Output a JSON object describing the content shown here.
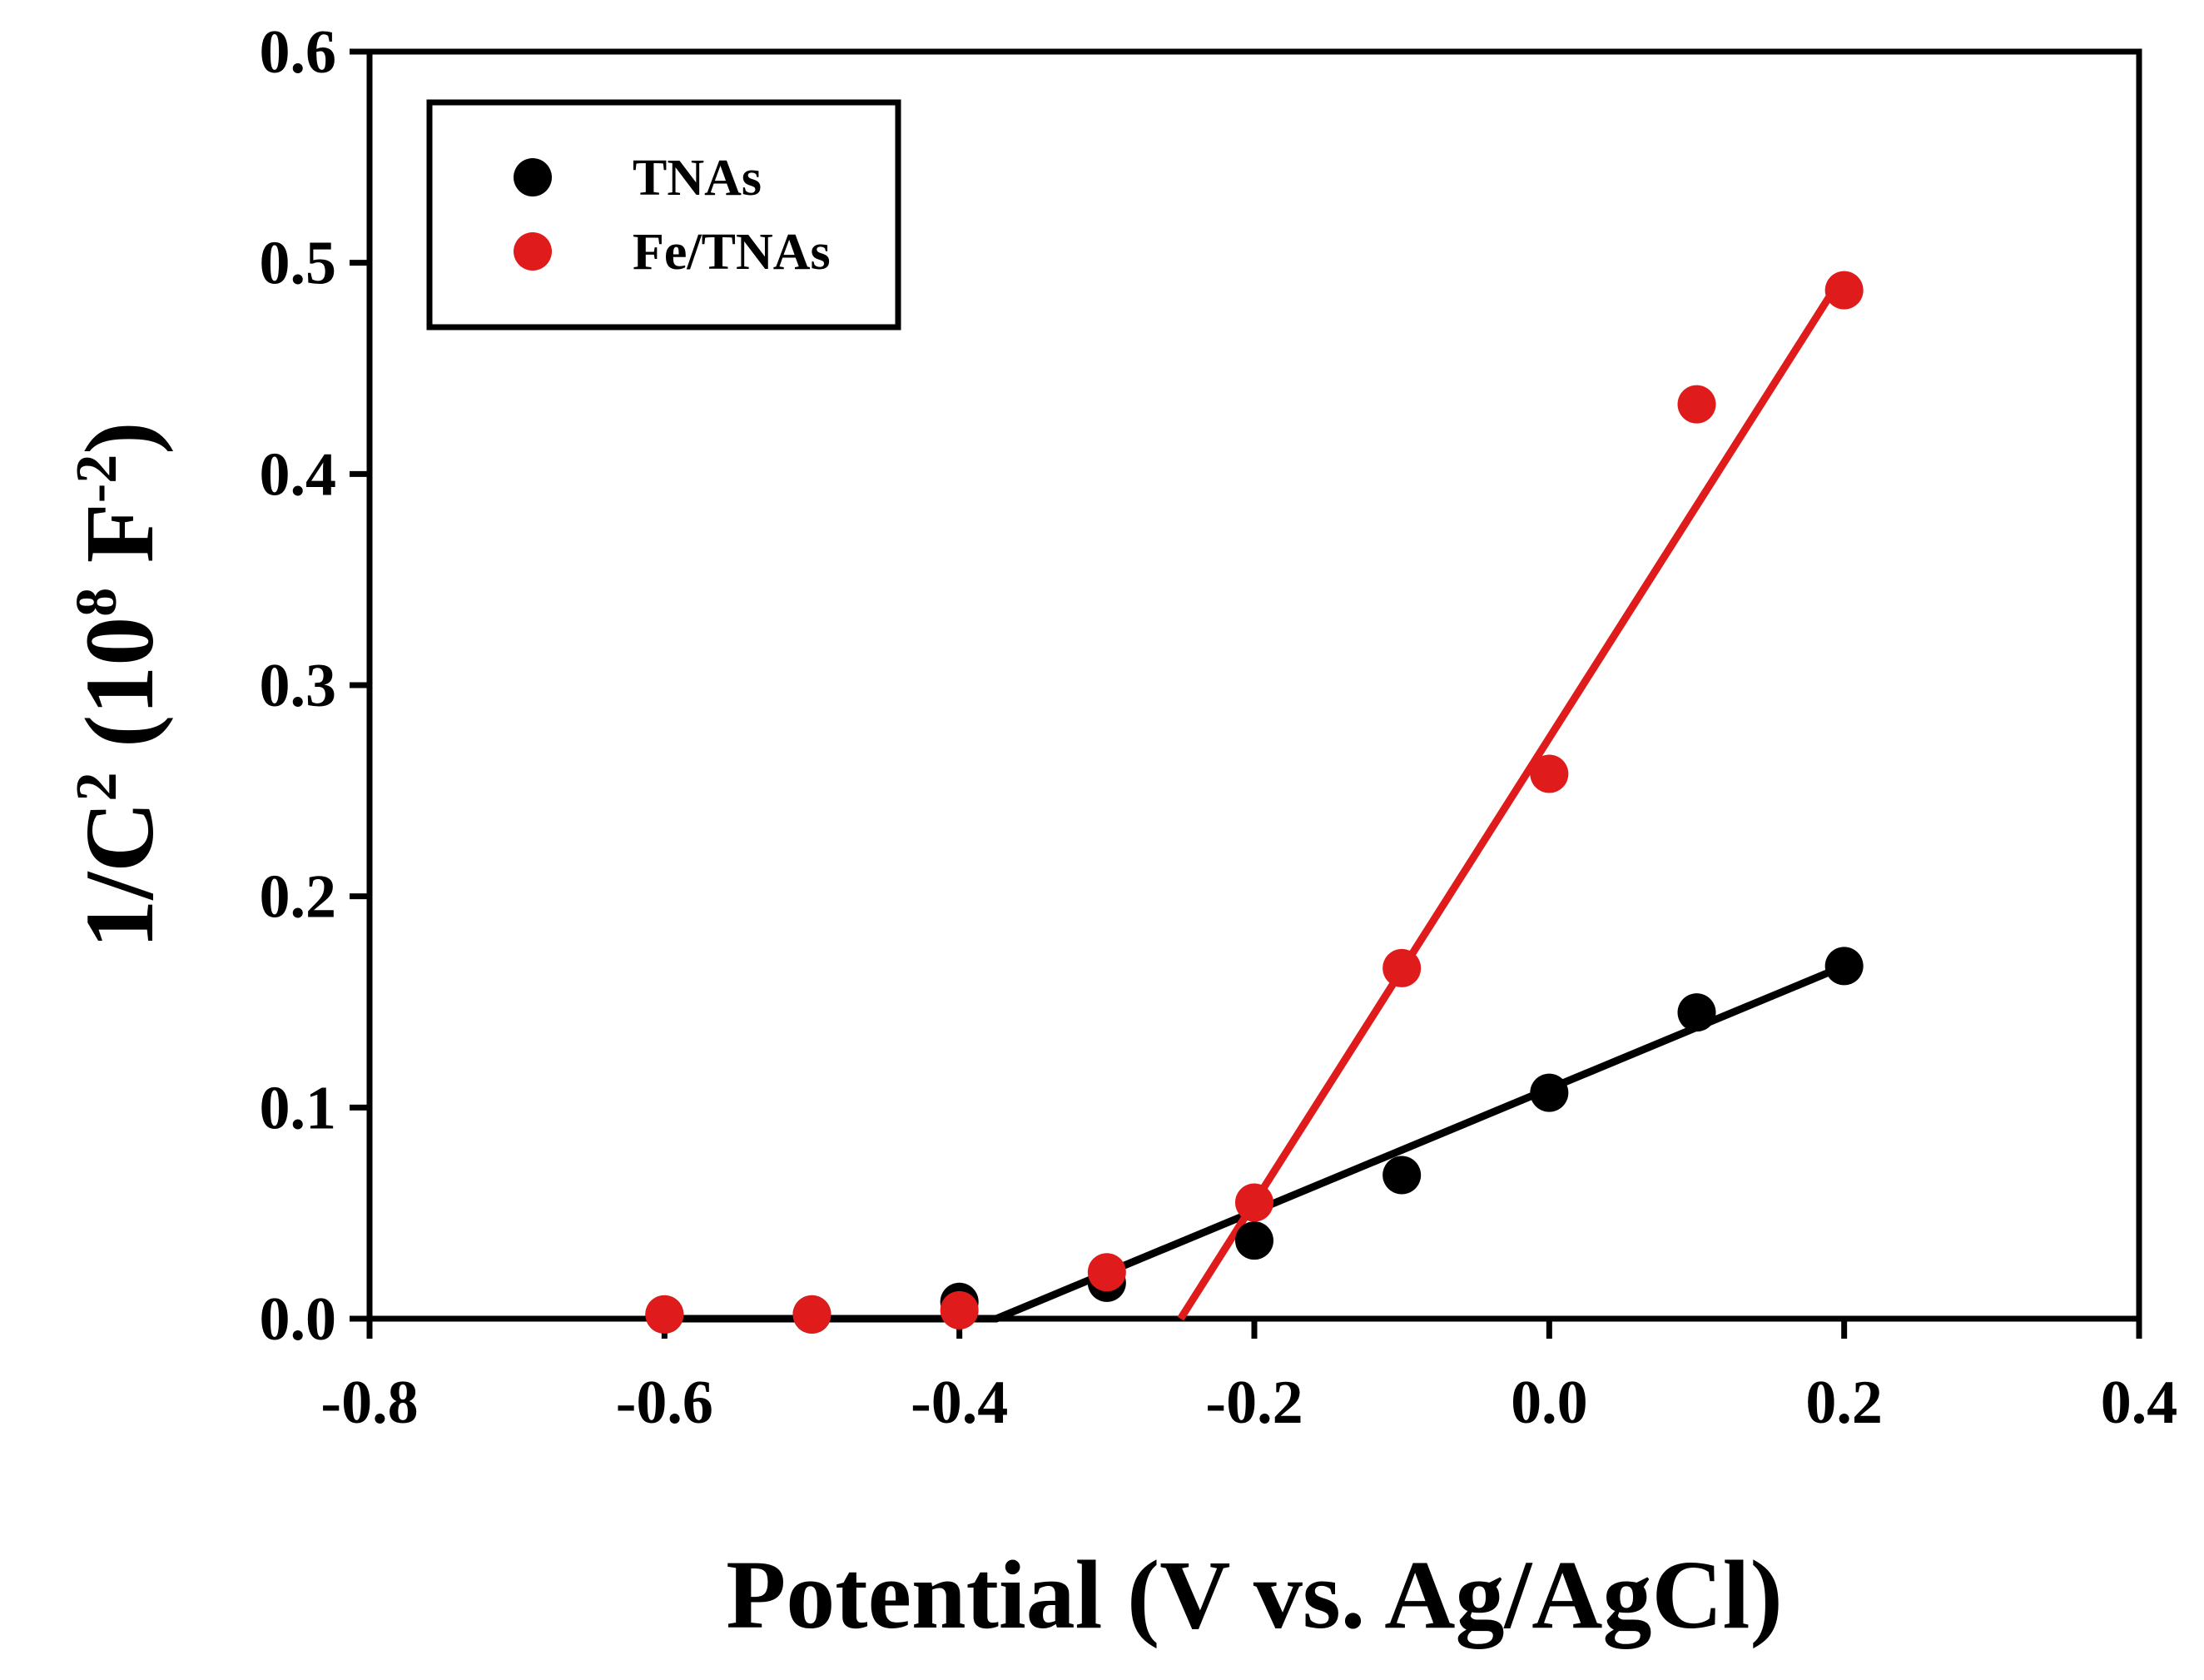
{
  "chart_data": {
    "type": "scatter",
    "title": "",
    "xlabel": "Potential (V vs. Ag/AgCl)",
    "ylabel": {
      "prefix": "1/C",
      "sup1": "2",
      "middle": " (10",
      "sup2": "8",
      "unit": " F",
      "sup3": "-2",
      "suffix": ")"
    },
    "xlim": [
      -0.8,
      0.4
    ],
    "ylim": [
      0.0,
      0.6
    ],
    "xticks": [
      "-0.8",
      "-0.6",
      "-0.4",
      "-0.2",
      "0.0",
      "0.2",
      "0.4"
    ],
    "yticks": [
      "0.0",
      "0.1",
      "0.2",
      "0.3",
      "0.4",
      "0.5",
      "0.6"
    ],
    "legend_position": "top-left",
    "series": [
      {
        "name": "TNAs",
        "color": "#000000",
        "x": [
          -0.6,
          -0.5,
          -0.4,
          -0.3,
          -0.2,
          -0.1,
          0.0,
          0.1,
          0.2
        ],
        "y": [
          0.002,
          0.002,
          0.008,
          0.017,
          0.037,
          0.068,
          0.107,
          0.145,
          0.167
        ],
        "fit": {
          "x": [
            -0.6,
            -0.375,
            0.2
          ],
          "y": [
            0.0,
            0.0,
            0.167
          ]
        }
      },
      {
        "name": "Fe/TNAs",
        "color": "#e01b1b",
        "x": [
          -0.6,
          -0.5,
          -0.4,
          -0.3,
          -0.2,
          -0.1,
          0.0,
          0.1,
          0.2
        ],
        "y": [
          0.002,
          0.002,
          0.004,
          0.022,
          0.055,
          0.166,
          0.258,
          0.433,
          0.487
        ],
        "fit": {
          "x": [
            -0.25,
            0.2
          ],
          "y": [
            0.0,
            0.495
          ]
        }
      }
    ]
  }
}
